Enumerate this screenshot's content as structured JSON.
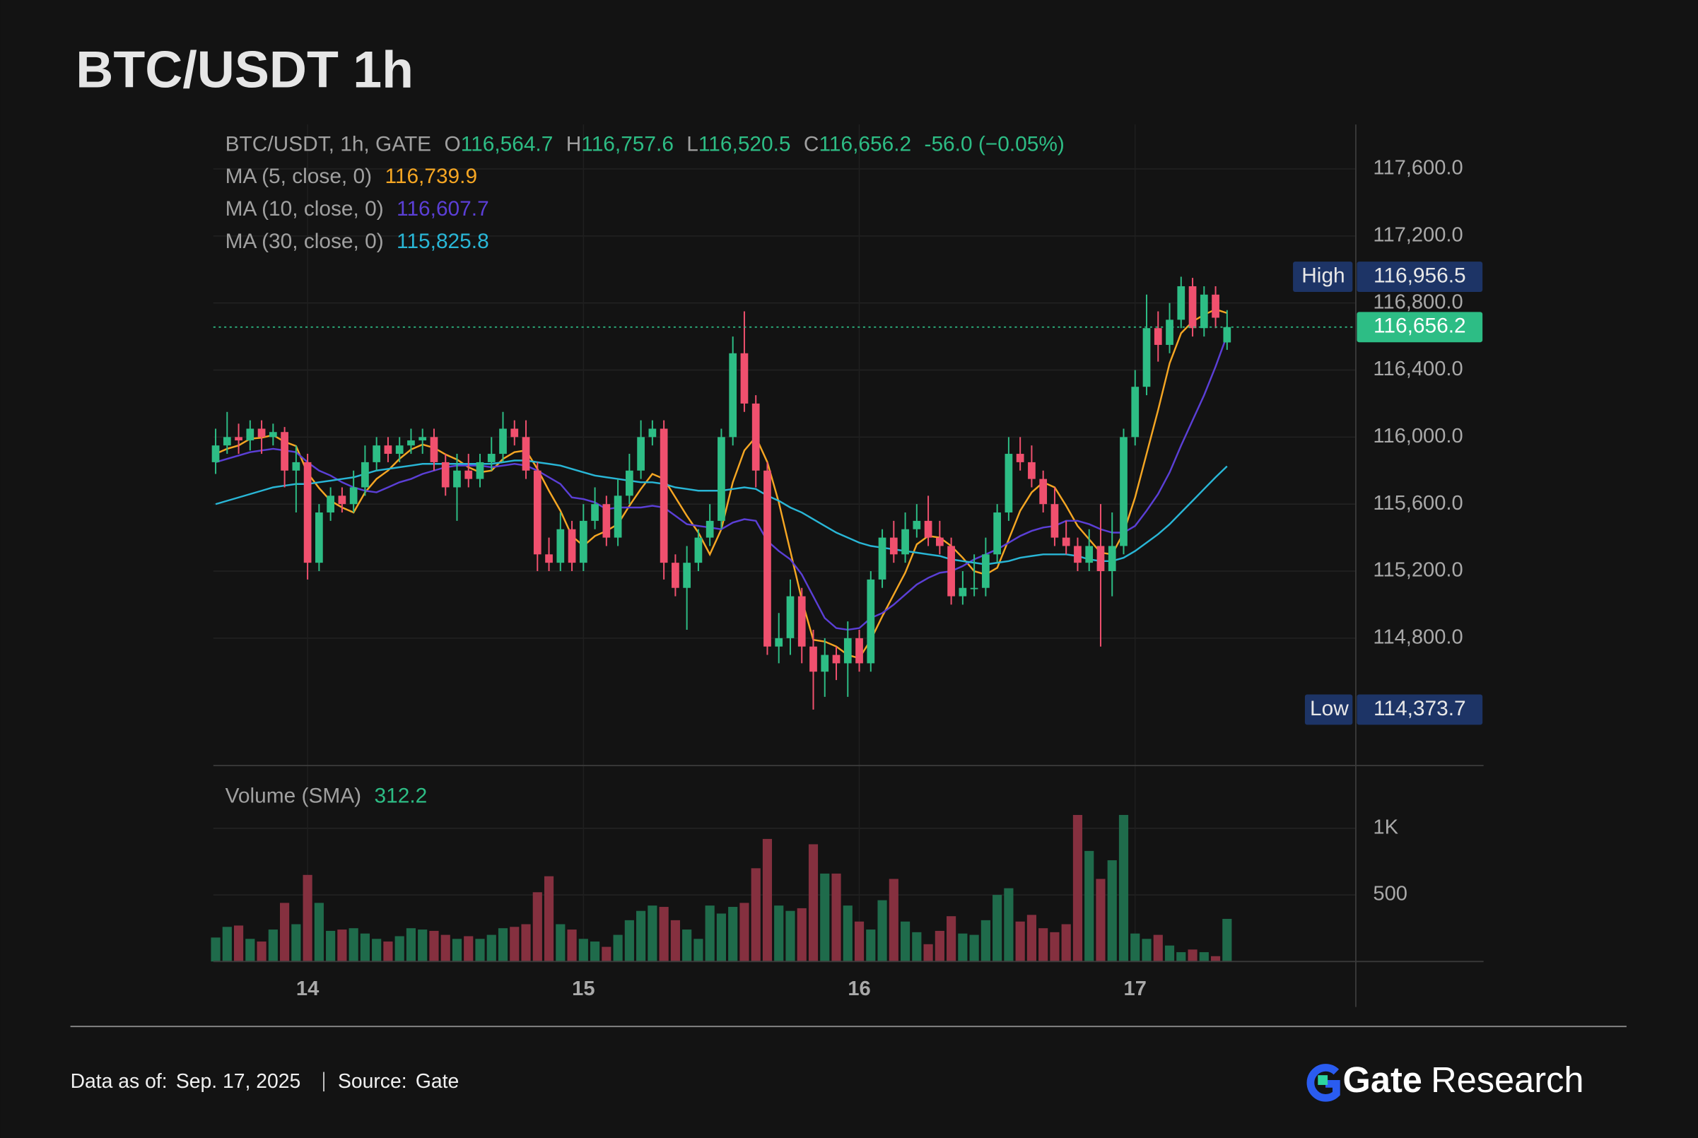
{
  "chart_data": {
    "type": "candlestick",
    "title": "BTC/USDT 1h",
    "symbol_label": "BTC/USDT, 1h, GATE",
    "legend": {
      "o_key": "O",
      "o": "116,564.7",
      "h_key": "H",
      "h": "116,757.6",
      "l_key": "L",
      "l": "116,520.5",
      "c_key": "C",
      "c": "116,656.2",
      "change": "-56.0 (−0.05%)"
    },
    "up_color": "#2dbd85",
    "down_color": "#f0506e",
    "up_volume_color": "#1f6b4b",
    "down_volume_color": "#85303f",
    "ma": [
      {
        "name": "MA (5, close, 0)",
        "value_label": "116,739.9",
        "color": "#f5a623",
        "values": [
          115900,
          115930,
          115950,
          115990,
          115996,
          116012,
          115972,
          115946,
          115786,
          115696,
          115620,
          115580,
          115550,
          115670,
          115750,
          115800,
          115870,
          115926,
          115956,
          115936,
          115896,
          115866,
          115820,
          115790,
          115800,
          115870,
          115910,
          115920,
          115810,
          115680,
          115560,
          115410,
          115350,
          115410,
          115440,
          115480,
          115590,
          115690,
          115780,
          115750,
          115640,
          115530,
          115430,
          115300,
          115450,
          115730,
          115920,
          116000,
          115850,
          115610,
          115320,
          115030,
          114790,
          114780,
          114750,
          114700,
          114680,
          114790,
          114930,
          115060,
          115190,
          115360,
          115410,
          115400,
          115350,
          115280,
          115200,
          115180,
          115220,
          115390,
          115560,
          115670,
          115730,
          115700,
          115590,
          115470,
          115390,
          115310,
          115300,
          115430,
          115640,
          115900,
          116160,
          116440,
          116620,
          116690,
          116730,
          116762,
          116739.9
        ]
      },
      {
        "name": "MA (10, close, 0)",
        "value_label": "116,607.7",
        "color": "#5b3fd6",
        "values": [
          115850,
          115870,
          115890,
          115910,
          115920,
          115930,
          115920,
          115910,
          115850,
          115800,
          115770,
          115730,
          115700,
          115680,
          115670,
          115700,
          115730,
          115750,
          115780,
          115800,
          115820,
          115830,
          115830,
          115830,
          115820,
          115830,
          115840,
          115830,
          115800,
          115760,
          115720,
          115640,
          115630,
          115610,
          115570,
          115580,
          115580,
          115580,
          115590,
          115580,
          115530,
          115480,
          115470,
          115460,
          115450,
          115490,
          115510,
          115500,
          115380,
          115320,
          115270,
          115180,
          115050,
          114920,
          114860,
          114850,
          114860,
          114920,
          114950,
          115000,
          115060,
          115120,
          115160,
          115190,
          115200,
          115230,
          115270,
          115300,
          115330,
          115370,
          115410,
          115440,
          115460,
          115470,
          115500,
          115500,
          115480,
          115450,
          115430,
          115430,
          115470,
          115560,
          115660,
          115790,
          115950,
          116100,
          116250,
          116420,
          116607.7
        ]
      },
      {
        "name": "MA (30, close, 0)",
        "value_label": "115,825.8",
        "color": "#29b6d6",
        "values": [
          115600,
          115620,
          115640,
          115660,
          115680,
          115700,
          115710,
          115720,
          115720,
          115730,
          115740,
          115750,
          115760,
          115780,
          115800,
          115810,
          115820,
          115830,
          115840,
          115840,
          115840,
          115840,
          115840,
          115840,
          115840,
          115850,
          115860,
          115860,
          115850,
          115840,
          115830,
          115810,
          115790,
          115770,
          115760,
          115750,
          115740,
          115730,
          115730,
          115720,
          115700,
          115690,
          115680,
          115680,
          115680,
          115690,
          115700,
          115690,
          115650,
          115620,
          115580,
          115550,
          115510,
          115470,
          115430,
          115400,
          115370,
          115350,
          115340,
          115330,
          115320,
          115310,
          115300,
          115290,
          115270,
          115260,
          115250,
          115240,
          115250,
          115260,
          115280,
          115290,
          115300,
          115300,
          115300,
          115290,
          115270,
          115260,
          115260,
          115280,
          115320,
          115370,
          115420,
          115480,
          115550,
          115620,
          115690,
          115760,
          115825.8
        ]
      }
    ],
    "open": [
      115850,
      115950,
      116000,
      115980,
      116050,
      116000,
      116030,
      115800,
      115850,
      115250,
      115550,
      115650,
      115600,
      115700,
      115850,
      115950,
      115900,
      115950,
      115980,
      116000,
      115850,
      115700,
      115800,
      115750,
      115850,
      115900,
      116050,
      116000,
      115800,
      115300,
      115250,
      115450,
      115250,
      115500,
      115600,
      115400,
      115650,
      115800,
      116000,
      116050,
      115250,
      115100,
      115250,
      115400,
      115500,
      116000,
      116500,
      116200,
      115800,
      114750,
      114800,
      115050,
      114750,
      114600,
      114700,
      114650,
      114800,
      114650,
      115150,
      115400,
      115300,
      115450,
      115500,
      115400,
      115350,
      115050,
      115100,
      115100,
      115300,
      115550,
      115900,
      115850,
      115750,
      115600,
      115400,
      115350,
      115250,
      115350,
      115200,
      115350,
      116000,
      116300,
      116650,
      116550,
      116700,
      116900,
      116650,
      116850,
      116564.7
    ],
    "high": [
      116050,
      116150,
      116080,
      116100,
      116100,
      116080,
      116060,
      115950,
      115900,
      115600,
      115700,
      115700,
      115800,
      115950,
      116000,
      116000,
      116000,
      116050,
      116050,
      116050,
      115900,
      115900,
      115900,
      115900,
      116000,
      116150,
      116100,
      116100,
      115850,
      115400,
      115550,
      115500,
      115600,
      115700,
      115650,
      115750,
      115900,
      116100,
      116100,
      116100,
      115300,
      115350,
      115450,
      115600,
      116050,
      116600,
      116750,
      116250,
      115850,
      114950,
      115150,
      115100,
      114850,
      114800,
      114750,
      114900,
      114850,
      115200,
      115450,
      115500,
      115550,
      115600,
      115650,
      115500,
      115400,
      115200,
      115300,
      115400,
      115600,
      116000,
      116000,
      115950,
      115800,
      115700,
      115500,
      115400,
      115450,
      115600,
      115550,
      116050,
      116400,
      116850,
      116750,
      116800,
      116956.5,
      116950,
      116900,
      116900,
      116757.6
    ],
    "low": [
      115780,
      115900,
      115900,
      115920,
      115900,
      115950,
      115700,
      115550,
      115150,
      115200,
      115500,
      115550,
      115550,
      115650,
      115800,
      115850,
      115850,
      115900,
      115900,
      115800,
      115650,
      115500,
      115700,
      115700,
      115800,
      115850,
      115950,
      115750,
      115200,
      115200,
      115200,
      115200,
      115200,
      115450,
      115350,
      115350,
      115600,
      115750,
      115950,
      115150,
      115050,
      114850,
      115200,
      115350,
      115450,
      115950,
      116150,
      115700,
      114700,
      114650,
      114700,
      114650,
      114373.7,
      114450,
      114550,
      114450,
      114600,
      114600,
      115100,
      115250,
      115250,
      115400,
      115350,
      115300,
      115000,
      115000,
      115050,
      115050,
      115250,
      115500,
      115800,
      115700,
      115550,
      115350,
      115300,
      115200,
      115200,
      114750,
      115050,
      115300,
      115950,
      116250,
      116450,
      116500,
      116650,
      116600,
      116600,
      116650,
      116520.5
    ],
    "close": [
      115950,
      116000,
      115980,
      116050,
      116000,
      116030,
      115800,
      115850,
      115250,
      115550,
      115650,
      115600,
      115700,
      115850,
      115950,
      115900,
      115950,
      115980,
      116000,
      115850,
      115700,
      115800,
      115750,
      115850,
      115900,
      116050,
      116000,
      115800,
      115300,
      115250,
      115450,
      115250,
      115500,
      115600,
      115400,
      115650,
      115800,
      116000,
      116050,
      115250,
      115100,
      115250,
      115400,
      115500,
      116000,
      116500,
      116200,
      115800,
      114750,
      114800,
      115050,
      114750,
      114600,
      114700,
      114650,
      114800,
      114650,
      115150,
      115400,
      115300,
      115450,
      115500,
      115400,
      115350,
      115050,
      115100,
      115100,
      115300,
      115550,
      115900,
      115850,
      115750,
      115600,
      115400,
      115350,
      115250,
      115350,
      115200,
      115350,
      116000,
      116300,
      116650,
      116550,
      116700,
      116900,
      116650,
      116850,
      116712.2,
      116656.2
    ],
    "volume": [
      180,
      260,
      270,
      170,
      150,
      240,
      440,
      280,
      650,
      440,
      230,
      240,
      250,
      210,
      170,
      150,
      190,
      250,
      240,
      230,
      200,
      170,
      190,
      170,
      200,
      250,
      260,
      280,
      520,
      640,
      280,
      240,
      170,
      150,
      110,
      200,
      310,
      380,
      420,
      410,
      310,
      240,
      170,
      420,
      360,
      410,
      440,
      700,
      920,
      420,
      380,
      400,
      880,
      660,
      660,
      420,
      300,
      240,
      460,
      620,
      300,
      220,
      130,
      230,
      340,
      210,
      200,
      310,
      500,
      550,
      300,
      350,
      250,
      220,
      280,
      1100,
      830,
      620,
      760,
      1100,
      210,
      170,
      200,
      120,
      70,
      90,
      70,
      40,
      320
    ],
    "volume_label": "Volume (SMA)",
    "volume_sma": "312.2",
    "xlim": [
      -0.2,
      99.2
    ],
    "xticks": [
      {
        "value": 8,
        "label": "14"
      },
      {
        "value": 32,
        "label": "15"
      },
      {
        "value": 56,
        "label": "16"
      },
      {
        "value": 80,
        "label": "17"
      }
    ],
    "ylim": [
      114040,
      117865
    ],
    "yticks": [
      {
        "value": 117600,
        "label": "117,600.0"
      },
      {
        "value": 117200,
        "label": "117,200.0"
      },
      {
        "value": 116800,
        "label": "116,800.0"
      },
      {
        "value": 116400,
        "label": "116,400.0"
      },
      {
        "value": 116000,
        "label": "116,000.0"
      },
      {
        "value": 115600,
        "label": "115,600.0"
      },
      {
        "value": 115200,
        "label": "115,200.0"
      },
      {
        "value": 114800,
        "label": "114,800.0"
      }
    ],
    "vlim": [
      0,
      1471
    ],
    "vticks": [
      {
        "value": 1000,
        "label": "1K"
      },
      500
    ],
    "grid": true,
    "high_marker": {
      "label": "High",
      "value": 116956.5,
      "value_label": "116,956.5"
    },
    "low_marker": {
      "label": "Low",
      "value": 114373.7,
      "value_label": "114,373.7"
    },
    "last_price": {
      "value": 116656.2,
      "label": "116,656.2"
    }
  },
  "footer": {
    "date_key": "Data as of:",
    "date": "Sep. 17, 2025",
    "source_key": "Source:",
    "source": "Gate",
    "brand_bold": "Gate",
    "brand_light": "Research"
  }
}
